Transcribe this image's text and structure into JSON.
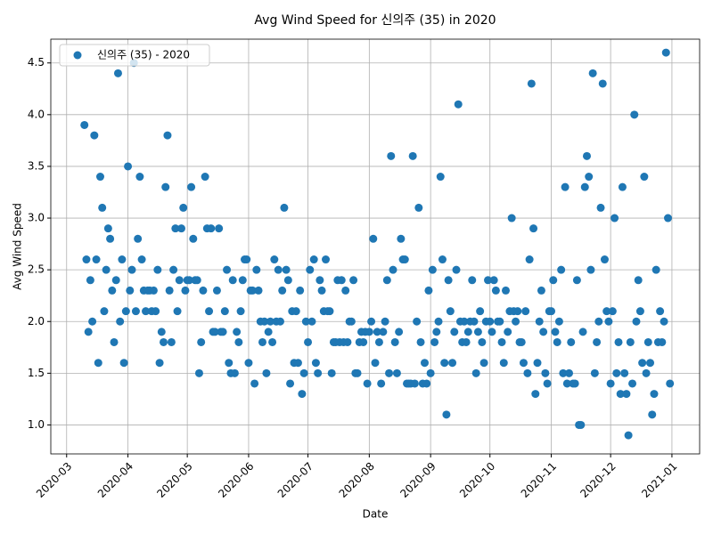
{
  "chart_data": {
    "type": "scatter",
    "title": "Avg Wind Speed for 신의주 (35) in 2020",
    "x_label": "Date",
    "y_label": "Avg Wind Speed",
    "xlim": [
      "2020-02-22",
      "2021-01-15"
    ],
    "xticks": [
      {
        "value": "2020-03-01",
        "label": "2020-03"
      },
      {
        "value": "2020-04-01",
        "label": "2020-04"
      },
      {
        "value": "2020-05-01",
        "label": "2020-05"
      },
      {
        "value": "2020-06-01",
        "label": "2020-06"
      },
      {
        "value": "2020-07-01",
        "label": "2020-07"
      },
      {
        "value": "2020-08-01",
        "label": "2020-08"
      },
      {
        "value": "2020-09-01",
        "label": "2020-09"
      },
      {
        "value": "2020-10-01",
        "label": "2020-10"
      },
      {
        "value": "2020-11-01",
        "label": "2020-11"
      },
      {
        "value": "2020-12-01",
        "label": "2020-12"
      },
      {
        "value": "2021-01-01",
        "label": "2021-01"
      }
    ],
    "ylim": [
      0.72,
      4.73
    ],
    "yticks": [
      {
        "value": 1,
        "label": "1.0"
      },
      {
        "value": 1.5,
        "label": "1.5"
      },
      {
        "value": 2,
        "label": "2.0"
      },
      {
        "value": 2.5,
        "label": "2.5"
      },
      {
        "value": 3,
        "label": "3.0"
      },
      {
        "value": 3.5,
        "label": "3.5"
      },
      {
        "value": 4,
        "label": "4.0"
      },
      {
        "value": 4.5,
        "label": "4.5"
      }
    ],
    "grid": true,
    "legend": "upper-left",
    "x": [
      "2020-03-10",
      "2020-03-11",
      "2020-03-12",
      "2020-03-13",
      "2020-03-14",
      "2020-03-15",
      "2020-03-16",
      "2020-03-17",
      "2020-03-18",
      "2020-03-19",
      "2020-03-20",
      "2020-03-21",
      "2020-03-22",
      "2020-03-23",
      "2020-03-24",
      "2020-03-25",
      "2020-03-26",
      "2020-03-27",
      "2020-03-28",
      "2020-03-29",
      "2020-03-30",
      "2020-03-31",
      "2020-04-01",
      "2020-04-02",
      "2020-04-03",
      "2020-04-04",
      "2020-04-05",
      "2020-04-06",
      "2020-04-07",
      "2020-04-08",
      "2020-04-09",
      "2020-04-10",
      "2020-04-11",
      "2020-04-12",
      "2020-04-13",
      "2020-04-14",
      "2020-04-15",
      "2020-04-16",
      "2020-04-17",
      "2020-04-18",
      "2020-04-19",
      "2020-04-20",
      "2020-04-21",
      "2020-04-22",
      "2020-04-23",
      "2020-04-24",
      "2020-04-25",
      "2020-04-26",
      "2020-04-27",
      "2020-04-28",
      "2020-04-29",
      "2020-04-30",
      "2020-05-01",
      "2020-05-02",
      "2020-05-03",
      "2020-05-04",
      "2020-05-05",
      "2020-05-06",
      "2020-05-07",
      "2020-05-08",
      "2020-05-09",
      "2020-05-10",
      "2020-05-11",
      "2020-05-12",
      "2020-05-13",
      "2020-05-14",
      "2020-05-15",
      "2020-05-16",
      "2020-05-17",
      "2020-05-18",
      "2020-05-19",
      "2020-05-20",
      "2020-05-21",
      "2020-05-22",
      "2020-05-23",
      "2020-05-24",
      "2020-05-25",
      "2020-05-26",
      "2020-05-27",
      "2020-05-28",
      "2020-05-29",
      "2020-05-30",
      "2020-05-31",
      "2020-06-01",
      "2020-06-02",
      "2020-06-03",
      "2020-06-04",
      "2020-06-05",
      "2020-06-06",
      "2020-06-07",
      "2020-06-08",
      "2020-06-09",
      "2020-06-10",
      "2020-06-11",
      "2020-06-12",
      "2020-06-13",
      "2020-06-14",
      "2020-06-15",
      "2020-06-16",
      "2020-06-17",
      "2020-06-18",
      "2020-06-19",
      "2020-06-20",
      "2020-06-21",
      "2020-06-22",
      "2020-06-23",
      "2020-06-24",
      "2020-06-25",
      "2020-06-26",
      "2020-06-27",
      "2020-06-28",
      "2020-06-29",
      "2020-06-30",
      "2020-07-01",
      "2020-07-02",
      "2020-07-03",
      "2020-07-04",
      "2020-07-05",
      "2020-07-06",
      "2020-07-07",
      "2020-07-08",
      "2020-07-09",
      "2020-07-10",
      "2020-07-11",
      "2020-07-12",
      "2020-07-13",
      "2020-07-14",
      "2020-07-15",
      "2020-07-16",
      "2020-07-17",
      "2020-07-18",
      "2020-07-19",
      "2020-07-20",
      "2020-07-21",
      "2020-07-22",
      "2020-07-23",
      "2020-07-24",
      "2020-07-25",
      "2020-07-26",
      "2020-07-27",
      "2020-07-28",
      "2020-07-29",
      "2020-07-30",
      "2020-07-31",
      "2020-08-01",
      "2020-08-02",
      "2020-08-03",
      "2020-08-04",
      "2020-08-05",
      "2020-08-06",
      "2020-08-07",
      "2020-08-08",
      "2020-08-09",
      "2020-08-10",
      "2020-08-11",
      "2020-08-12",
      "2020-08-13",
      "2020-08-14",
      "2020-08-15",
      "2020-08-16",
      "2020-08-17",
      "2020-08-18",
      "2020-08-19",
      "2020-08-20",
      "2020-08-21",
      "2020-08-22",
      "2020-08-23",
      "2020-08-24",
      "2020-08-25",
      "2020-08-26",
      "2020-08-27",
      "2020-08-28",
      "2020-08-29",
      "2020-08-30",
      "2020-08-31",
      "2020-09-01",
      "2020-09-02",
      "2020-09-03",
      "2020-09-04",
      "2020-09-05",
      "2020-09-06",
      "2020-09-07",
      "2020-09-08",
      "2020-09-09",
      "2020-09-10",
      "2020-09-11",
      "2020-09-12",
      "2020-09-13",
      "2020-09-14",
      "2020-09-15",
      "2020-09-16",
      "2020-09-17",
      "2020-09-18",
      "2020-09-19",
      "2020-09-20",
      "2020-09-21",
      "2020-09-22",
      "2020-09-23",
      "2020-09-24",
      "2020-09-25",
      "2020-09-26",
      "2020-09-27",
      "2020-09-28",
      "2020-09-29",
      "2020-09-30",
      "2020-10-01",
      "2020-10-02",
      "2020-10-03",
      "2020-10-04",
      "2020-10-05",
      "2020-10-06",
      "2020-10-07",
      "2020-10-08",
      "2020-10-09",
      "2020-10-10",
      "2020-10-11",
      "2020-10-12",
      "2020-10-13",
      "2020-10-14",
      "2020-10-15",
      "2020-10-16",
      "2020-10-17",
      "2020-10-18",
      "2020-10-19",
      "2020-10-20",
      "2020-10-21",
      "2020-10-22",
      "2020-10-23",
      "2020-10-24",
      "2020-10-25",
      "2020-10-26",
      "2020-10-27",
      "2020-10-28",
      "2020-10-29",
      "2020-10-30",
      "2020-10-31",
      "2020-11-01",
      "2020-11-02",
      "2020-11-03",
      "2020-11-04",
      "2020-11-05",
      "2020-11-06",
      "2020-11-07",
      "2020-11-08",
      "2020-11-09",
      "2020-11-10",
      "2020-11-11",
      "2020-11-12",
      "2020-11-13",
      "2020-11-14",
      "2020-11-15",
      "2020-11-16",
      "2020-11-17",
      "2020-11-18",
      "2020-11-19",
      "2020-11-20",
      "2020-11-21",
      "2020-11-22",
      "2020-11-23",
      "2020-11-24",
      "2020-11-25",
      "2020-11-26",
      "2020-11-27",
      "2020-11-28",
      "2020-11-29",
      "2020-11-30",
      "2020-12-01",
      "2020-12-02",
      "2020-12-03",
      "2020-12-04",
      "2020-12-05",
      "2020-12-06",
      "2020-12-07",
      "2020-12-08",
      "2020-12-09",
      "2020-12-10",
      "2020-12-11",
      "2020-12-12",
      "2020-12-13",
      "2020-12-14",
      "2020-12-15",
      "2020-12-16",
      "2020-12-17",
      "2020-12-18",
      "2020-12-19",
      "2020-12-20",
      "2020-12-21",
      "2020-12-22",
      "2020-12-23",
      "2020-12-24",
      "2020-12-25",
      "2020-12-26",
      "2020-12-27",
      "2020-12-28",
      "2020-12-29",
      "2020-12-30",
      "2020-12-31"
    ],
    "series": [
      {
        "name": "신의주 (35) - 2020",
        "color": "#1f77b4",
        "values": [
          3.9,
          2.6,
          1.9,
          2.4,
          2.0,
          3.8,
          2.6,
          1.6,
          3.4,
          3.1,
          2.1,
          2.5,
          2.9,
          2.8,
          2.3,
          1.8,
          2.4,
          4.4,
          2.0,
          2.6,
          1.6,
          2.1,
          3.5,
          2.3,
          2.5,
          4.5,
          2.1,
          2.8,
          3.4,
          2.6,
          2.3,
          2.1,
          2.3,
          2.3,
          2.1,
          2.3,
          2.1,
          2.5,
          1.6,
          1.9,
          1.8,
          3.3,
          3.8,
          2.3,
          1.8,
          2.5,
          2.9,
          2.1,
          2.4,
          2.9,
          3.1,
          2.3,
          2.4,
          2.4,
          3.3,
          2.8,
          2.4,
          2.4,
          1.5,
          1.8,
          2.3,
          3.4,
          2.9,
          2.1,
          2.9,
          1.9,
          1.9,
          2.3,
          2.9,
          1.9,
          1.9,
          2.1,
          2.5,
          1.6,
          1.5,
          2.4,
          1.5,
          1.9,
          1.8,
          2.1,
          2.4,
          2.6,
          2.6,
          1.6,
          2.3,
          2.3,
          1.4,
          2.5,
          2.3,
          2.0,
          1.8,
          2.0,
          1.5,
          1.9,
          2.0,
          1.8,
          2.6,
          2.0,
          2.5,
          2.0,
          2.3,
          3.1,
          2.5,
          2.4,
          1.4,
          2.1,
          1.6,
          2.1,
          1.6,
          2.3,
          1.3,
          1.5,
          2.0,
          1.8,
          2.5,
          2.0,
          2.6,
          1.6,
          1.5,
          2.4,
          2.3,
          2.1,
          2.6,
          2.1,
          2.1,
          1.5,
          1.8,
          1.8,
          2.4,
          1.8,
          2.4,
          1.8,
          2.3,
          1.8,
          2.0,
          2.0,
          2.4,
          1.5,
          1.5,
          1.8,
          1.9,
          1.8,
          1.9,
          1.4,
          1.9,
          2.0,
          2.8,
          1.6,
          1.9,
          1.8,
          1.4,
          1.9,
          2.0,
          2.4,
          1.5,
          3.6,
          2.5,
          1.8,
          1.5,
          1.9,
          2.8,
          2.6,
          2.6,
          1.4,
          1.4,
          1.4,
          3.6,
          1.4,
          2.0,
          3.1,
          1.8,
          1.4,
          1.6,
          1.4,
          2.3,
          1.5,
          2.5,
          1.8,
          1.9,
          2.0,
          3.4,
          2.6,
          1.6,
          1.1,
          2.4,
          2.1,
          1.6,
          1.9,
          2.5,
          4.1,
          2.0,
          1.8,
          2.0,
          1.8,
          1.9,
          2.0,
          2.4,
          2.0,
          1.5,
          1.9,
          2.1,
          1.8,
          1.6,
          2.0,
          2.4,
          2.0,
          1.9,
          2.4,
          2.3,
          2.0,
          2.0,
          1.8,
          1.6,
          2.3,
          1.9,
          2.1,
          3.0,
          2.1,
          2.0,
          2.1,
          1.8,
          1.8,
          1.6,
          2.1,
          1.5,
          2.6,
          4.3,
          2.9,
          1.3,
          1.6,
          2.0,
          2.3,
          1.9,
          1.5,
          1.4,
          2.1,
          2.1,
          2.4,
          1.9,
          1.8,
          2.0,
          2.5,
          1.5,
          3.3,
          1.4,
          1.5,
          1.8,
          1.4,
          1.4,
          2.4,
          1.0,
          1.0,
          1.9,
          3.3,
          3.6,
          3.4,
          2.5,
          4.4,
          1.5,
          1.8,
          2.0,
          3.1,
          4.3,
          2.6,
          2.1,
          2.0,
          1.4,
          2.1,
          3.0,
          1.5,
          1.8,
          1.3,
          3.3,
          1.5,
          1.3,
          0.9,
          1.8,
          1.4,
          4.0,
          2.0,
          2.4,
          2.1,
          1.6,
          3.4,
          1.5,
          1.8,
          1.6,
          1.1,
          1.3,
          2.5,
          1.8,
          2.1,
          1.8,
          2.0,
          4.6,
          3.0,
          1.4
        ]
      }
    ]
  }
}
